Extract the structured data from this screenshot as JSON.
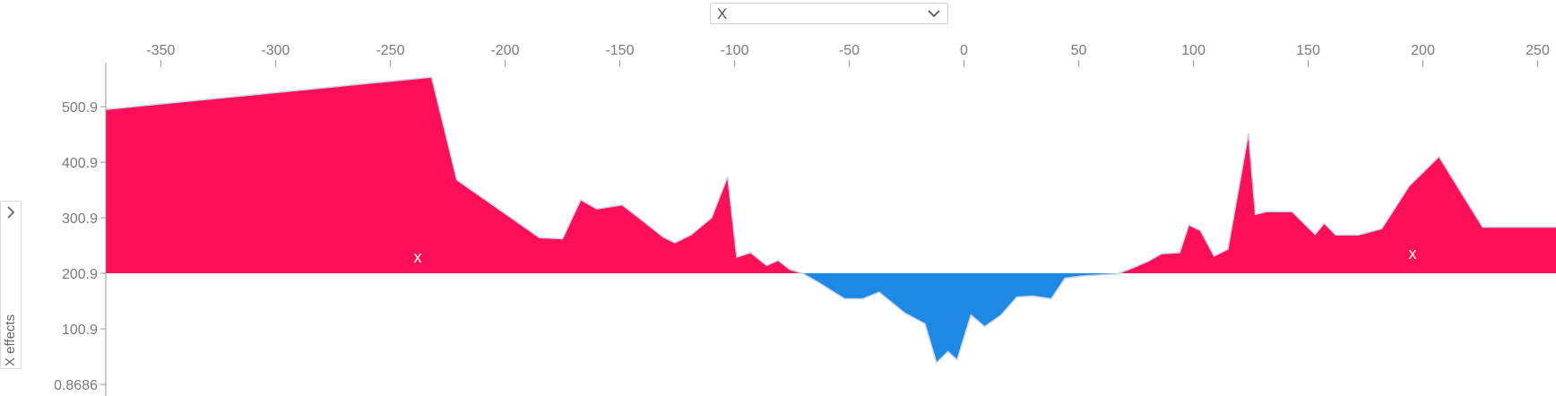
{
  "selector": {
    "value": "X"
  },
  "side_tab": {
    "label": "X effects"
  },
  "feature_labels": [
    "x",
    "x"
  ],
  "colors": {
    "positive": "#ff0f57",
    "negative": "#1e88e5",
    "outline": "#c6d3ea",
    "axis": "#9a9a9a",
    "tick_text": "#7a7a7a"
  },
  "chart_data": {
    "type": "area",
    "title": "",
    "xlabel": "",
    "ylabel": "X effects",
    "xlim": [
      -374,
      258
    ],
    "ylim": [
      -20,
      580
    ],
    "baseline": 200.9,
    "x_ticks": [
      -350,
      -300,
      -250,
      -200,
      -150,
      -100,
      -50,
      0,
      50,
      100,
      150,
      200,
      250
    ],
    "x_tick_labels": [
      "-350",
      "-300",
      "-250",
      "-200",
      "-150",
      "-100",
      "-50",
      "0",
      "50",
      "100",
      "150",
      "200",
      "250"
    ],
    "x_axis_position": "top",
    "y_ticks": [
      0.8686,
      100.9,
      200.9,
      300.9,
      400.9,
      500.9
    ],
    "y_tick_labels": [
      "0.8686",
      "100.9",
      "200.9",
      "300.9",
      "400.9",
      "500.9"
    ],
    "grid": false,
    "legend": "none",
    "x": [
      -374,
      -232,
      -221,
      -185,
      -175,
      -167,
      -160,
      -149,
      -142,
      -131,
      -126,
      -119,
      -110,
      -103,
      -99,
      -93,
      -86,
      -81,
      -76,
      -70,
      -64,
      -52,
      -44,
      -37,
      -26,
      -17,
      -12,
      -7,
      -3,
      3,
      9,
      16,
      23,
      30,
      38,
      44,
      51,
      67,
      72,
      80,
      86,
      94,
      98,
      103,
      109,
      115,
      124,
      127,
      132,
      136,
      143,
      153,
      157,
      162,
      172,
      182,
      194,
      207,
      226,
      241,
      249,
      258
    ],
    "y": [
      496,
      554,
      369,
      265,
      263,
      333,
      317,
      324,
      302,
      266,
      256,
      270,
      301,
      375,
      230,
      238,
      215,
      224,
      208,
      200,
      186,
      155,
      155,
      167,
      130,
      110,
      40,
      60,
      45,
      126,
      105,
      125,
      158,
      160,
      155,
      192,
      196,
      200,
      208,
      222,
      236,
      238,
      288,
      278,
      232,
      244,
      453,
      307,
      312,
      312,
      312,
      271,
      291,
      270,
      270,
      281,
      358,
      411,
      284,
      284,
      284,
      284
    ]
  }
}
